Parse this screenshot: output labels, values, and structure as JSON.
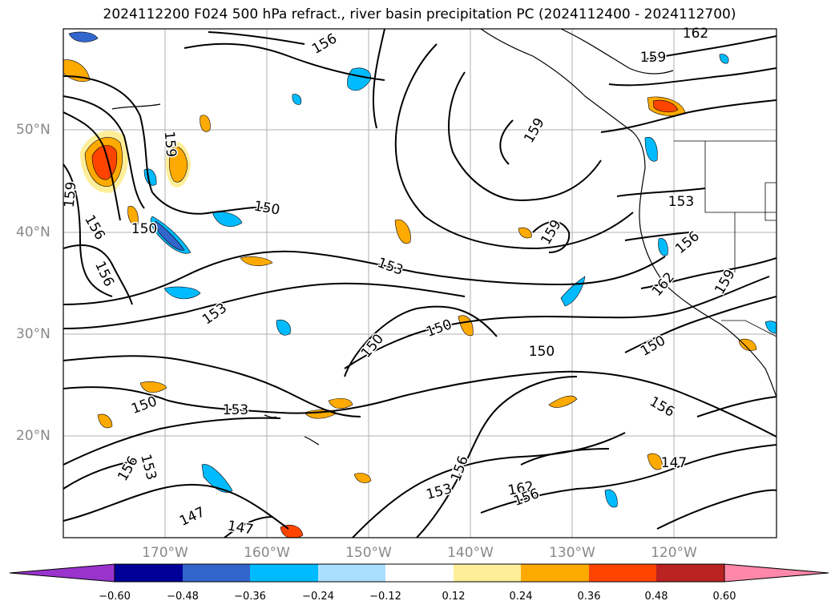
{
  "title": "2024112200 F024 500 hPa refract., river basin precipitation PC (2024112400 - 2024112700)",
  "lat_labels": [
    "50°N",
    "40°N",
    "30°N",
    "20°N"
  ],
  "lon_labels": [
    "170°W",
    "160°W",
    "150°W",
    "140°W",
    "130°W",
    "120°W"
  ],
  "colorbar": {
    "ticks": [
      "−0.60",
      "−0.48",
      "−0.36",
      "−0.24",
      "−0.12",
      "0.12",
      "0.24",
      "0.36",
      "0.48",
      "0.60"
    ],
    "colors": [
      "#9933cc",
      "#000099",
      "#3366cc",
      "#00bbff",
      "#aae0ff",
      "#ffffff",
      "#ffee99",
      "#ffaa00",
      "#ff4400",
      "#bb2222",
      "#ff88aa"
    ]
  },
  "contour_labels": [
    "162",
    "159",
    "156",
    "159",
    "159",
    "156",
    "150",
    "150",
    "153",
    "156",
    "159",
    "153",
    "156",
    "159",
    "162",
    "159",
    "153",
    "150",
    "150",
    "150",
    "150",
    "150",
    "153",
    "156",
    "147",
    "153",
    "156",
    "153",
    "156",
    "162",
    "156",
    "147",
    "147"
  ]
}
